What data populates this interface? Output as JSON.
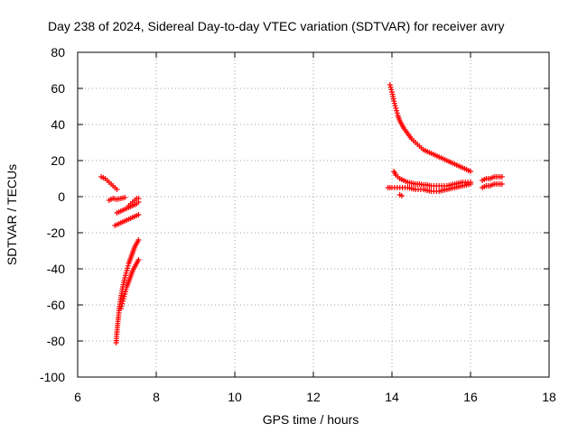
{
  "chart_data": {
    "type": "scatter",
    "title": "Day 238 of 2024, Sidereal Day-to-day VTEC variation (SDTVAR) for receiver avry",
    "xlabel": "GPS time / hours",
    "ylabel": "SDTVAR / TECUs",
    "xlim": [
      6,
      18
    ],
    "ylim": [
      -100,
      80
    ],
    "xticks": [
      6,
      8,
      10,
      12,
      14,
      16,
      18
    ],
    "yticks": [
      -100,
      -80,
      -60,
      -40,
      -20,
      0,
      20,
      40,
      60,
      80
    ],
    "xtick_labels": [
      "6",
      "8",
      "10",
      "12",
      "14",
      "16",
      "18"
    ],
    "ytick_labels": [
      "-100",
      "-80",
      "-60",
      "-40",
      "-20",
      "0",
      "20",
      "40",
      "60",
      "80"
    ],
    "grid": true,
    "marker": "plus",
    "color": "#ff0000",
    "series": [
      {
        "name": "track-a",
        "x": [
          6.6,
          6.65,
          6.7,
          6.75,
          6.8,
          6.85,
          6.9,
          6.95,
          7.0
        ],
        "y": [
          11,
          10.5,
          10,
          9,
          8,
          7,
          6,
          5,
          4
        ]
      },
      {
        "name": "track-b",
        "x": [
          6.8,
          6.9,
          7.0,
          7.1,
          7.2
        ],
        "y": [
          -2,
          -1,
          -1.5,
          -1,
          -0.5
        ]
      },
      {
        "name": "track-c",
        "x": [
          7.0,
          7.1,
          7.2,
          7.3,
          7.4,
          7.5,
          7.55
        ],
        "y": [
          -9,
          -8,
          -7,
          -6,
          -5,
          -4,
          -3
        ]
      },
      {
        "name": "track-d",
        "x": [
          7.3,
          7.35,
          7.4,
          7.45,
          7.5,
          7.55
        ],
        "y": [
          -5,
          -4,
          -3,
          -2,
          -1,
          -1
        ]
      },
      {
        "name": "track-e",
        "x": [
          6.95,
          7.05,
          7.15,
          7.25,
          7.35,
          7.45,
          7.55
        ],
        "y": [
          -16,
          -15,
          -14,
          -13,
          -12,
          -11,
          -10
        ]
      },
      {
        "name": "track-f",
        "x": [
          6.98,
          7.0,
          7.03,
          7.06,
          7.1,
          7.15,
          7.2,
          7.25,
          7.3,
          7.35,
          7.4,
          7.45,
          7.5,
          7.55
        ],
        "y": [
          -81,
          -75,
          -68,
          -62,
          -56,
          -50,
          -45,
          -41,
          -37,
          -34,
          -31,
          -28,
          -26,
          -24
        ]
      },
      {
        "name": "track-g",
        "x": [
          7.1,
          7.15,
          7.2,
          7.25,
          7.3,
          7.35,
          7.4,
          7.45,
          7.5,
          7.55
        ],
        "y": [
          -62,
          -58,
          -54,
          -50,
          -47,
          -44,
          -41,
          -39,
          -37,
          -35
        ]
      },
      {
        "name": "track-h",
        "x": [
          13.95,
          14.0,
          14.05,
          14.1,
          14.15,
          14.2,
          14.3,
          14.4,
          14.5,
          14.6,
          14.7,
          14.8,
          14.9,
          15.0,
          15.2,
          15.4,
          15.6,
          15.8,
          16.0
        ],
        "y": [
          62,
          58,
          53,
          49,
          45,
          42,
          38,
          35,
          32,
          30,
          28,
          26,
          25,
          24,
          22,
          20,
          18,
          16,
          14
        ]
      },
      {
        "name": "track-i",
        "x": [
          14.05,
          14.1,
          14.2,
          14.3,
          14.4,
          14.5,
          14.6,
          14.7,
          14.8,
          14.9,
          15.0,
          15.2,
          15.4,
          15.6,
          15.8,
          16.0
        ],
        "y": [
          14,
          12,
          10,
          9,
          8,
          7.5,
          7,
          7,
          6.5,
          6.5,
          6,
          6,
          6,
          7,
          8,
          8
        ]
      },
      {
        "name": "track-j",
        "x": [
          13.9,
          14.0,
          14.2,
          14.4,
          14.6,
          14.8,
          15.0,
          15.2,
          15.4,
          15.6,
          15.8,
          16.0
        ],
        "y": [
          5,
          5,
          5,
          5,
          4,
          4,
          3,
          3,
          4,
          5,
          6,
          7
        ]
      },
      {
        "name": "track-k",
        "x": [
          14.2,
          14.25
        ],
        "y": [
          1,
          0.5
        ]
      },
      {
        "name": "track-l",
        "x": [
          16.3,
          16.4,
          16.5,
          16.6,
          16.7,
          16.8
        ],
        "y": [
          9,
          10,
          10,
          11,
          11,
          11
        ]
      },
      {
        "name": "track-m",
        "x": [
          16.3,
          16.4,
          16.5,
          16.6,
          16.7,
          16.8
        ],
        "y": [
          5,
          6,
          6,
          7,
          7,
          7
        ]
      }
    ]
  }
}
